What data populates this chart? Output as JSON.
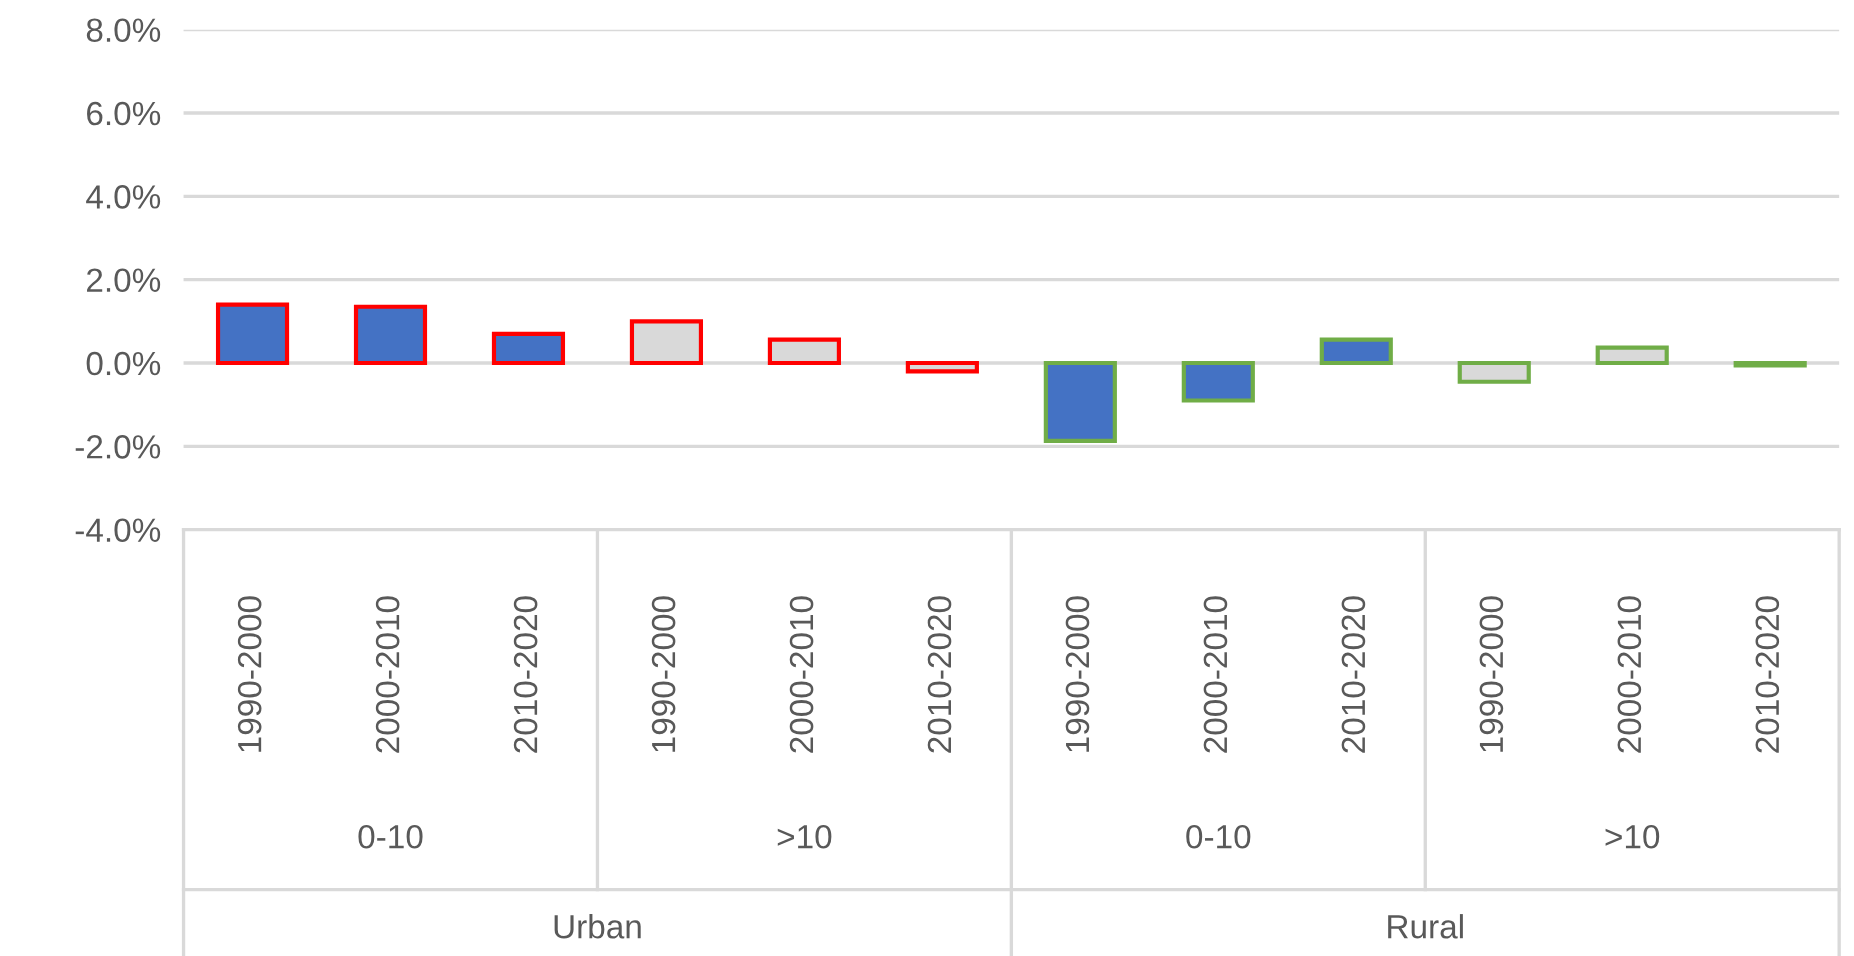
{
  "chart_data": {
    "type": "bar",
    "categories": [
      "1990-2000",
      "2000-2010",
      "2010-2020",
      "1990-2000",
      "2000-2010",
      "2010-2020",
      "1990-2000",
      "2000-2010",
      "2010-2020",
      "1990-2000",
      "2000-2010",
      "2010-2020"
    ],
    "values": [
      1.4,
      1.35,
      0.7,
      1.0,
      0.56,
      -0.2,
      -1.87,
      -0.9,
      0.56,
      -0.45,
      0.37,
      -0.06
    ],
    "colors": [
      "#4472c4",
      "#4472c4",
      "#4472c4",
      "#d9d9d9",
      "#d9d9d9",
      "#d9d9d9",
      "#4472c4",
      "#4472c4",
      "#4472c4",
      "#d9d9d9",
      "#d9d9d9",
      "#d9d9d9"
    ],
    "annotations": [
      "0-10",
      ">10",
      "0-10",
      ">10",
      "Urban",
      "Rural"
    ],
    "ylim": [
      -4,
      8
    ],
    "yticks": [
      {
        "value": -4,
        "label": "-4.0%"
      },
      {
        "value": -2,
        "label": "-2.0%"
      },
      {
        "value": 0,
        "label": "0.0%"
      },
      {
        "value": 2,
        "label": "2.0%"
      },
      {
        "value": 4,
        "label": "4.0%"
      },
      {
        "value": 6,
        "label": "6.0%"
      },
      {
        "value": 8,
        "label": "8.0%"
      }
    ],
    "grid": "y",
    "legend": false
  }
}
